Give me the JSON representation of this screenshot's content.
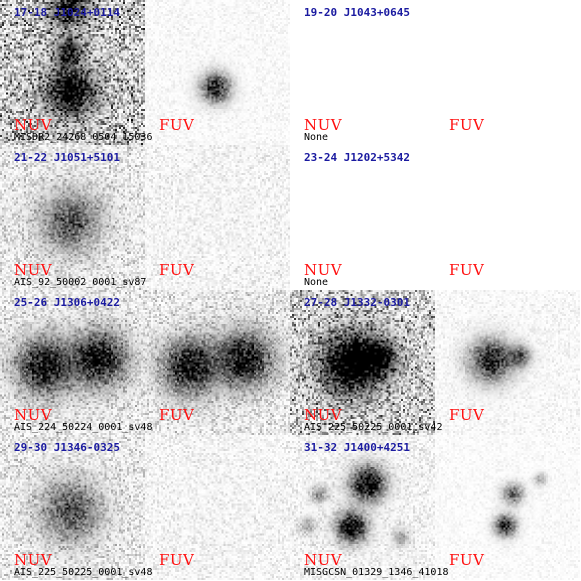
{
  "panels": [
    {
      "title": "17-18 J1024+0114",
      "nuv_label": "NUV",
      "fuv_label": "FUV",
      "file_id": "MISDR2_24268_0504_15036",
      "nuv_image": "dense-noise-two-sources",
      "fuv_image": "faint-single-source"
    },
    {
      "title": "19-20 J1043+0645",
      "nuv_label": "NUV",
      "fuv_label": "FUV",
      "file_id": "None",
      "nuv_image": "blank",
      "fuv_image": "blank"
    },
    {
      "title": "21-22 J1051+5101",
      "nuv_label": "NUV",
      "fuv_label": "FUV",
      "file_id": "AIS_92_50002_0001_sv87",
      "nuv_image": "sparse-noise-central-source",
      "fuv_image": "sparse-noise"
    },
    {
      "title": "23-24 J1202+5342",
      "nuv_label": "NUV",
      "fuv_label": "FUV",
      "file_id": "None",
      "nuv_image": "blank",
      "fuv_image": "blank"
    },
    {
      "title": "25-26 J1306+0422",
      "nuv_label": "NUV",
      "fuv_label": "FUV",
      "file_id": "AIS_224_50224_0001_sv48",
      "nuv_image": "sparse-noise-double-source",
      "fuv_image": "sparse-noise-double-source"
    },
    {
      "title": "27-28 J1332-0301",
      "nuv_label": "NUV",
      "fuv_label": "FUV",
      "file_id": "AIS_225_50225_0001_sv42",
      "nuv_image": "dense-noise-bright-source",
      "fuv_image": "faint-source"
    },
    {
      "title": "29-30 J1346-0325",
      "nuv_label": "NUV",
      "fuv_label": "FUV",
      "file_id": "AIS_225_50225_0001_sv48",
      "nuv_image": "sparse-noise-central-source",
      "fuv_image": "sparse-noise"
    },
    {
      "title": "31-32 J1400+4251",
      "nuv_label": "NUV",
      "fuv_label": "FUV",
      "file_id": "MISGCSN_01329_1346_41018",
      "nuv_image": "light-noise-multiple-sources",
      "fuv_image": "faint-multiple-sources"
    }
  ]
}
